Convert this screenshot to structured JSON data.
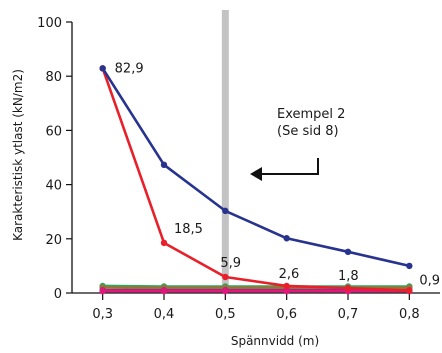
{
  "chart_data": {
    "type": "line",
    "xlabel": "Spännvidd (m)",
    "ylabel": "Karakteristisk ytlast (kN/m2)",
    "categories": [
      "0,3",
      "0,4",
      "0,5",
      "0,6",
      "0,7",
      "0,8"
    ],
    "x": [
      0.3,
      0.4,
      0.5,
      0.6,
      0.7,
      0.8
    ],
    "xlim": [
      0.25,
      0.85
    ],
    "ylim": [
      0,
      100
    ],
    "yticks": [
      "0",
      "20",
      "40",
      "60",
      "80",
      "100"
    ],
    "grid": false,
    "series": [
      {
        "color": "#27338f",
        "values": [
          82.9,
          47.3,
          30.3,
          20.2,
          15.2,
          10.0
        ]
      },
      {
        "color": "#e8202a",
        "values": [
          82.9,
          18.5,
          5.9,
          2.6,
          1.8,
          0.9
        ]
      },
      {
        "color": "#2aa866",
        "values": [
          2.6,
          2.4,
          2.4,
          2.4,
          2.4,
          2.4
        ]
      },
      {
        "color": "#a07030",
        "values": [
          2.0,
          1.9,
          1.9,
          1.9,
          1.9,
          1.9
        ]
      },
      {
        "color": "#8a2c9a",
        "values": [
          1.0,
          1.0,
          1.0,
          1.0,
          1.0,
          1.0
        ]
      },
      {
        "color": "#e0187a",
        "values": [
          0.7,
          0.7,
          0.7,
          0.7,
          0.7,
          0.7
        ]
      }
    ],
    "data_labels": [
      {
        "x": 0.3,
        "y": 82.9,
        "text": "82,9"
      },
      {
        "x": 0.4,
        "y": 18.5,
        "text": "18,5"
      },
      {
        "x": 0.5,
        "y": 5.9,
        "text": "5,9"
      },
      {
        "x": 0.6,
        "y": 2.6,
        "text": "2,6"
      },
      {
        "x": 0.7,
        "y": 1.8,
        "text": "1,8"
      },
      {
        "x": 0.8,
        "y": 0.9,
        "text": "0,9"
      }
    ],
    "reference_line": {
      "x": 0.5,
      "color": "#c3c3c3"
    },
    "annotation": {
      "line1": "Exempel 2",
      "line2": "(Se sid 8)",
      "x": 0.5
    }
  }
}
